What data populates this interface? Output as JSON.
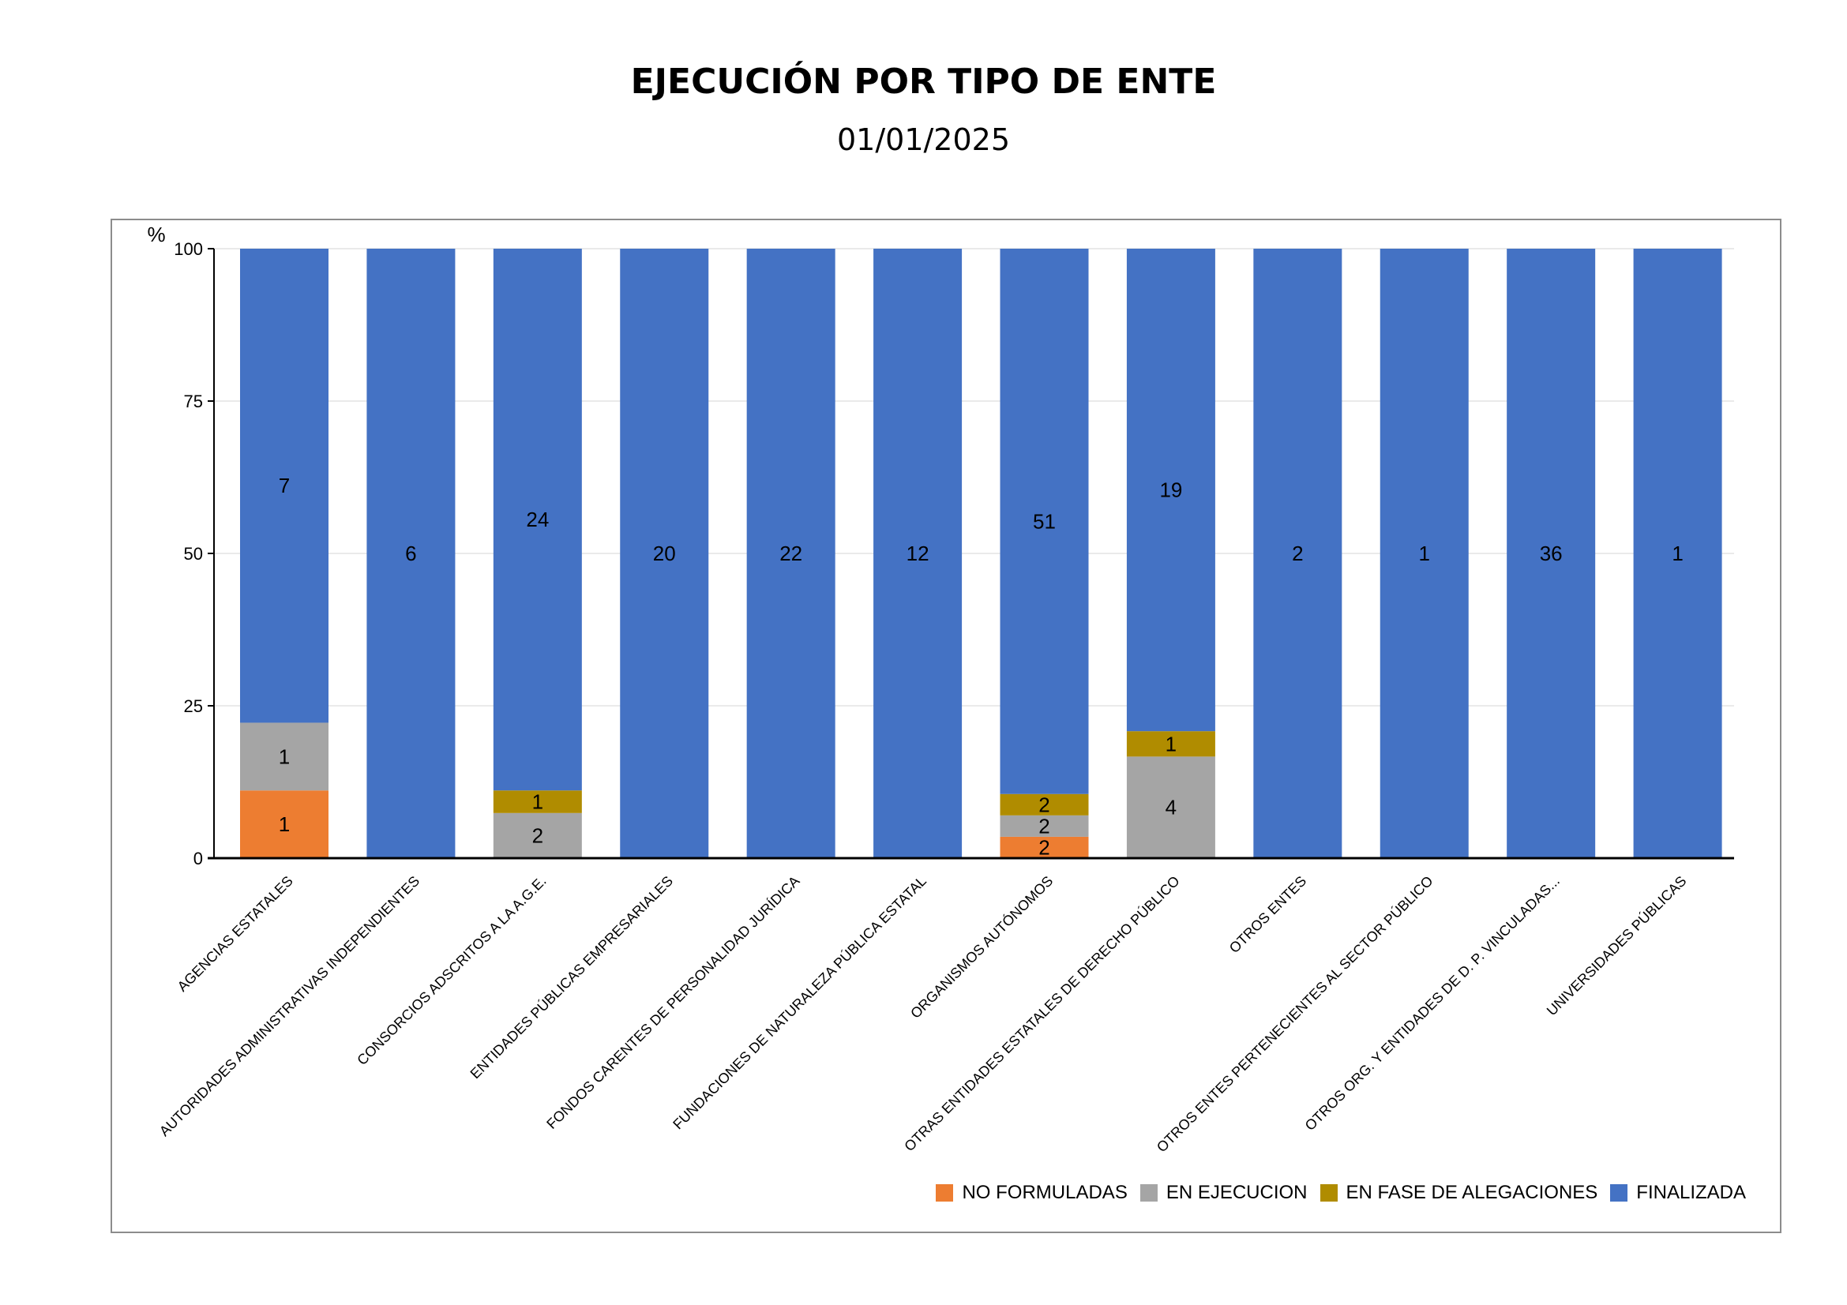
{
  "chart_data": {
    "type": "bar",
    "stacked": true,
    "title": "EJECUCIÓN POR TIPO DE ENTE",
    "subtitle": "01/01/2025",
    "ylabel": "%",
    "ylim": [
      0,
      100
    ],
    "yticks": [
      "0",
      "25",
      "50",
      "75",
      "100"
    ],
    "grid": true,
    "legend_position": "bottom-right",
    "categories": [
      "AGENCIAS ESTATALES",
      "AUTORIDADES ADMINISTRATIVAS INDEPENDIENTES",
      "CONSORCIOS ADSCRITOS A LA A.G.E.",
      "ENTIDADES PÚBLICAS EMPRESARIALES",
      "FONDOS CARENTES DE PERSONALIDAD JURÍDICA",
      "FUNDACIONES DE NATURALEZA PÚBLICA ESTATAL",
      "ORGANISMOS AUTÓNOMOS",
      "OTRAS ENTIDADES ESTATALES DE DERECHO PÚBLICO",
      "OTROS ENTES",
      "OTROS ENTES PERTENECIENTES AL SECTOR PÚBLICO",
      "OTROS ORG. Y ENTIDADES DE D. P. VINCULADAS...",
      "UNIVERSIDADES PÚBLICAS"
    ],
    "series": [
      {
        "name": "NO FORMULADAS",
        "color": "#ED7D31",
        "values": [
          1,
          0,
          0,
          0,
          0,
          0,
          2,
          0,
          0,
          0,
          0,
          0
        ]
      },
      {
        "name": "EN EJECUCION",
        "color": "#A5A5A5",
        "values": [
          1,
          0,
          2,
          0,
          0,
          0,
          2,
          4,
          0,
          0,
          0,
          0
        ]
      },
      {
        "name": "EN FASE DE ALEGACIONES",
        "color": "#B08C00",
        "values": [
          0,
          0,
          1,
          0,
          0,
          0,
          2,
          1,
          0,
          0,
          0,
          0
        ]
      },
      {
        "name": "FINALIZADA",
        "color": "#4472C4",
        "values": [
          7,
          6,
          24,
          20,
          22,
          12,
          51,
          19,
          2,
          1,
          36,
          1
        ]
      }
    ]
  }
}
